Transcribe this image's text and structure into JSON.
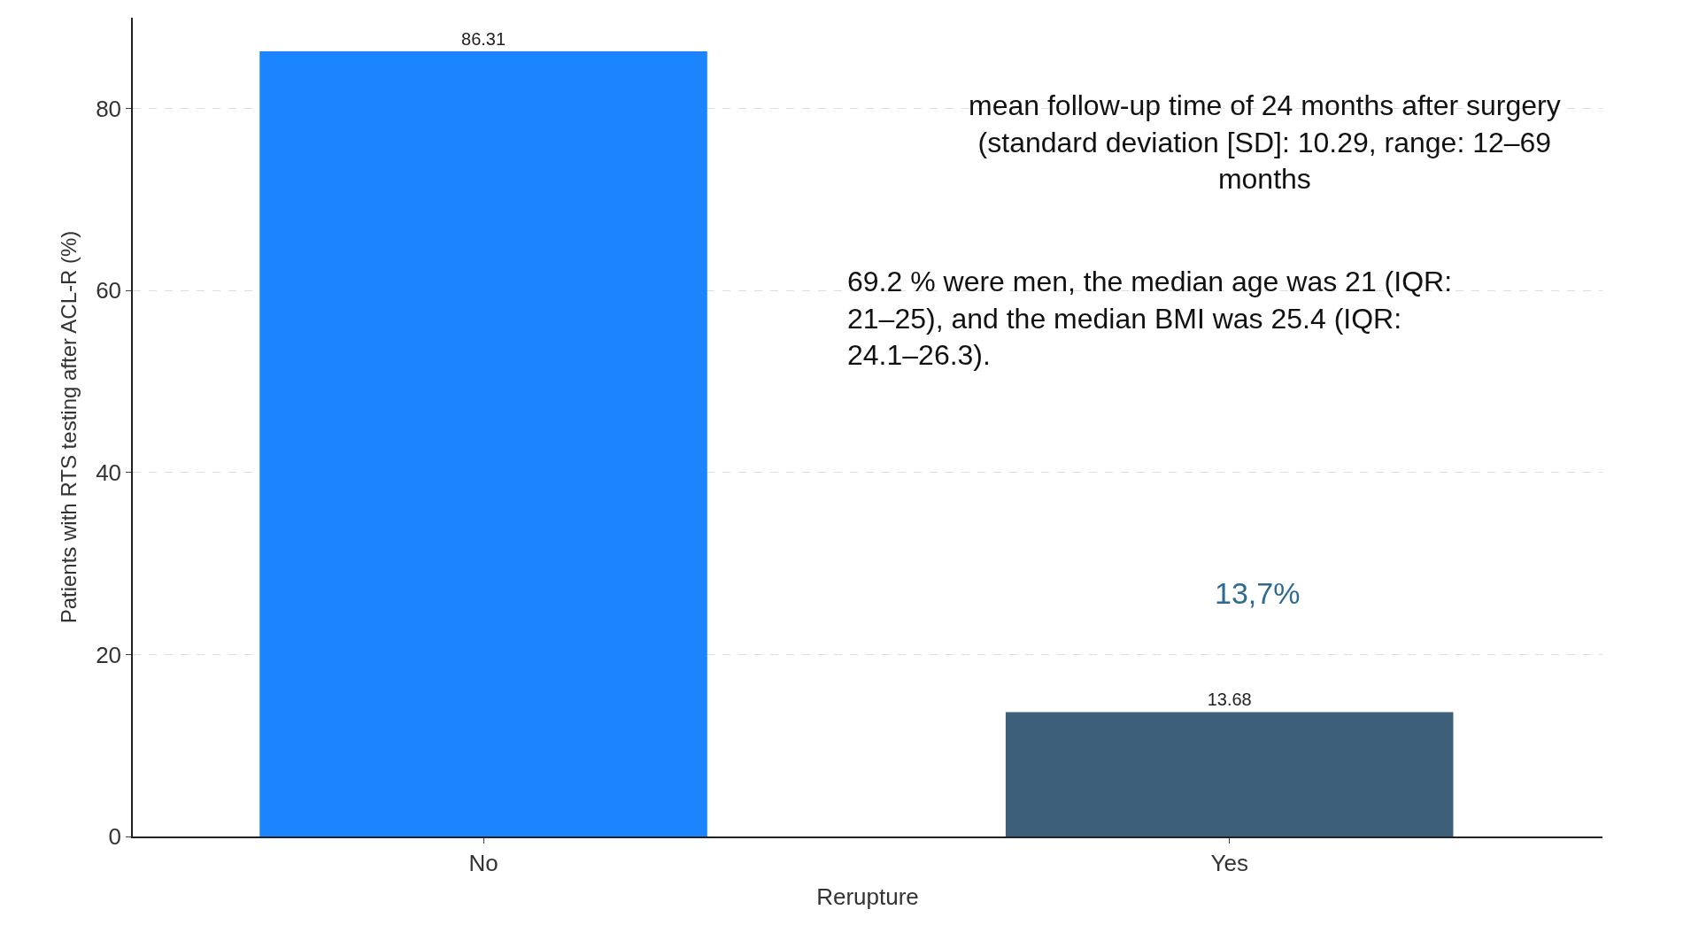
{
  "chart_data": {
    "type": "bar",
    "xlabel": "Rerupture",
    "ylabel": "Patients with RTS testing after ACL-R (%)",
    "categories": [
      "No",
      "Yes"
    ],
    "values": [
      86.31,
      13.68
    ],
    "colors": [
      "#1a85ff",
      "#3d5f7a"
    ],
    "data_labels": true,
    "ylim": [
      0,
      90
    ],
    "yticks": [
      0,
      20,
      40,
      60,
      80
    ],
    "grid": "y",
    "annotations": [
      "mean follow-up time of 24 months after surgery (standard deviation [SD]: 10.29, range: 12–69 months",
      "69.2 % were men, the median age was 21 (IQR: 21–25), and the median BMI was 25.4 (IQR: 24.1–26.3).",
      "13,7%"
    ]
  }
}
